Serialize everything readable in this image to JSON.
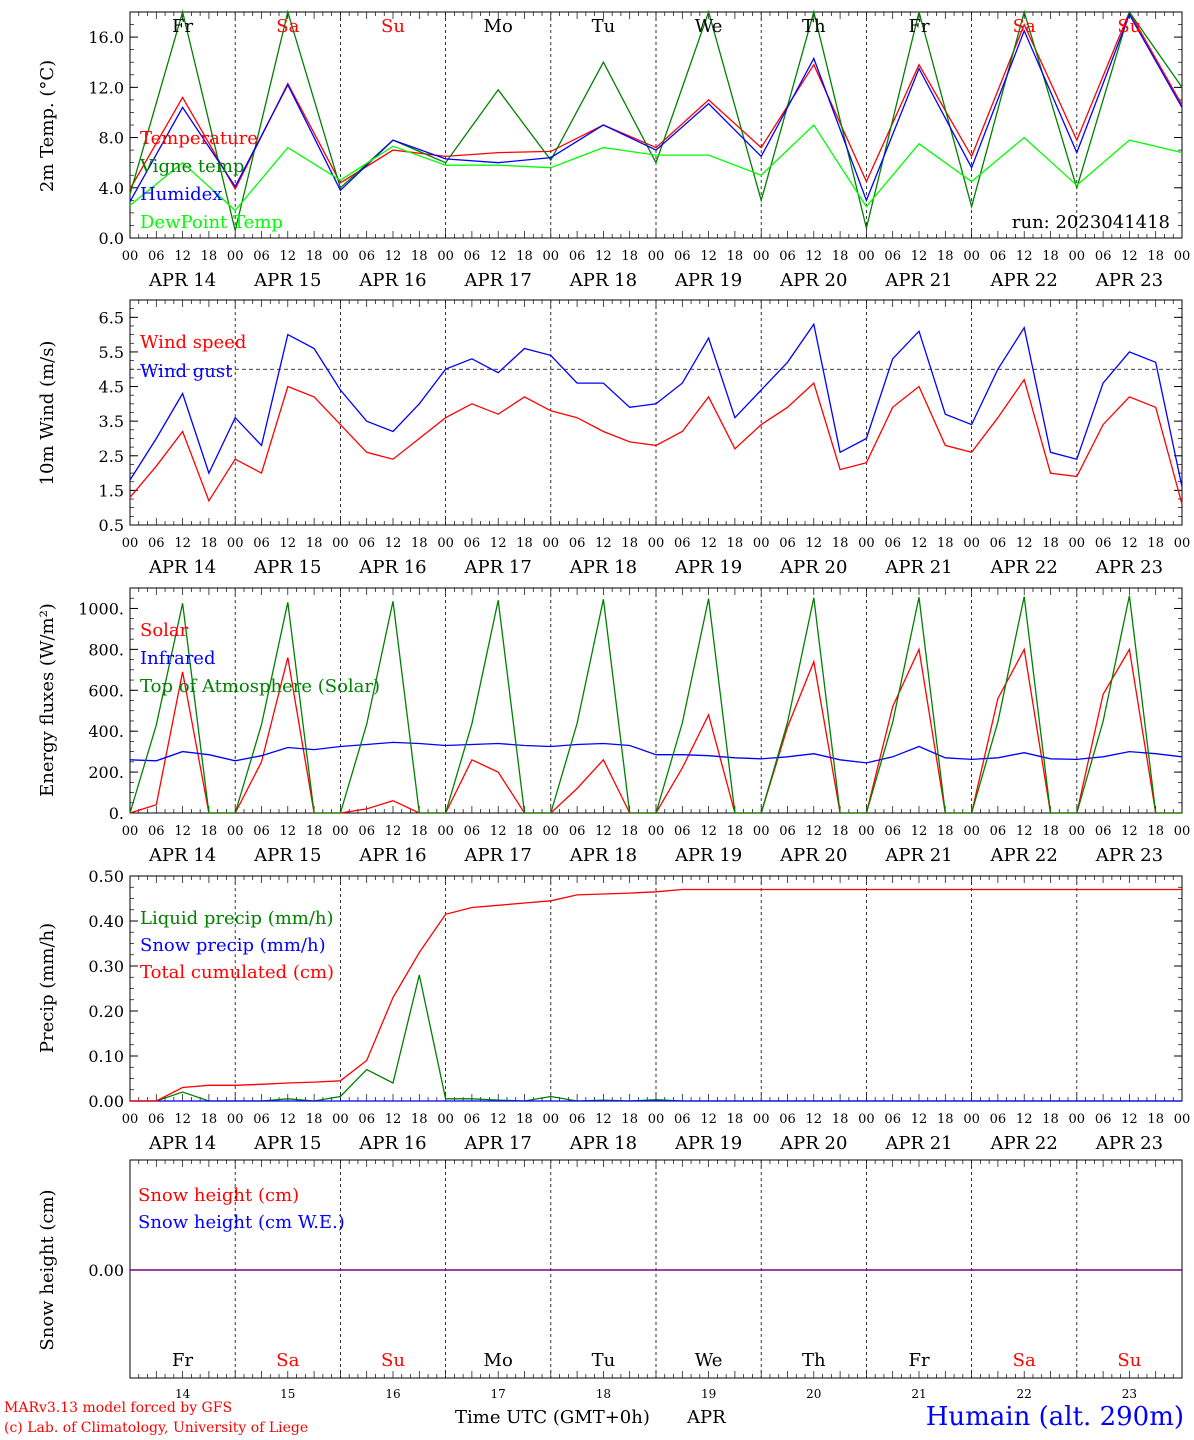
{
  "meta": {
    "run_label": "run: 2023041418",
    "station": "Humain (alt. 290m)",
    "credit1": "MARv3.13 model forced by GFS",
    "credit2": "(c) Lab. of Climatology, University of Liege",
    "xaxis_title": "Time UTC (GMT+0h)",
    "month": "APR"
  },
  "days": [
    "APR 14",
    "APR 15",
    "APR 16",
    "APR 17",
    "APR 18",
    "APR 19",
    "APR 20",
    "APR 21",
    "APR 22",
    "APR 23"
  ],
  "day_numbers": [
    "14",
    "15",
    "16",
    "17",
    "18",
    "19",
    "20",
    "21",
    "22",
    "23"
  ],
  "weekdays": [
    "Fr",
    "Sa",
    "Su",
    "Mo",
    "Tu",
    "We",
    "Th",
    "Fr",
    "Sa",
    "Su"
  ],
  "weekday_colors": [
    "#000000",
    "#ff0000",
    "#ff0000",
    "#000000",
    "#000000",
    "#000000",
    "#000000",
    "#000000",
    "#ff0000",
    "#ff0000"
  ],
  "hour_labels": [
    "00",
    "06",
    "12",
    "18"
  ],
  "colors": {
    "red": "#ff0000",
    "green": "#008000",
    "blue": "#0000ff",
    "lime": "#00ff00",
    "purple": "#800080"
  },
  "chart_data": [
    {
      "type": "line",
      "id": "temp",
      "ylabel": "2m Temp. (°C)",
      "ylim": [
        0,
        18
      ],
      "yticks": [
        "0.0",
        "4.0",
        "8.0",
        "12.0",
        "16.0"
      ],
      "x_hours": [
        0,
        12,
        24,
        36,
        48,
        60,
        72,
        84,
        96,
        108,
        120,
        132,
        144,
        156,
        168,
        180,
        192,
        204,
        216,
        228,
        240
      ],
      "series": [
        {
          "name": "Temperature",
          "color": "#ff0000",
          "values": [
            3.9,
            11.2,
            3.9,
            12.3,
            4.4,
            7.0,
            6.5,
            6.8,
            6.9,
            9.0,
            7.2,
            11.0,
            7.2,
            13.8,
            4.5,
            13.8,
            6.5,
            17.0,
            7.8,
            18.0,
            10.6
          ]
        },
        {
          "name": "Vigne temp",
          "color": "#008000",
          "values": [
            3.5,
            18.0,
            0.6,
            18.0,
            4.0,
            7.8,
            6.0,
            11.8,
            6.2,
            14.0,
            6.0,
            18.0,
            3.0,
            18.0,
            0.8,
            18.0,
            2.5,
            18.0,
            4.0,
            18.0,
            12.0
          ]
        },
        {
          "name": "Humidex",
          "color": "#0000ff",
          "values": [
            2.9,
            10.4,
            4.1,
            12.2,
            3.8,
            7.8,
            6.3,
            6.0,
            6.4,
            9.0,
            7.0,
            10.7,
            6.5,
            14.3,
            3.0,
            13.5,
            5.6,
            16.5,
            6.8,
            17.8,
            10.4
          ]
        },
        {
          "name": "DewPoint Temp",
          "color": "#00ff00",
          "values": [
            2.6,
            6.0,
            2.2,
            7.2,
            4.6,
            7.3,
            5.8,
            5.8,
            5.6,
            7.2,
            6.6,
            6.6,
            5.0,
            9.0,
            2.5,
            7.5,
            4.5,
            8.0,
            4.2,
            7.8,
            6.8
          ]
        }
      ]
    },
    {
      "type": "line",
      "id": "wind",
      "ylabel": "10m Wind (m/s)",
      "ylim": [
        0.5,
        7.0
      ],
      "yticks": [
        "0.5",
        "1.5",
        "2.5",
        "3.5",
        "4.5",
        "5.5",
        "6.5"
      ],
      "ref_line": 5.0,
      "x_hours": [
        0,
        6,
        12,
        18,
        24,
        30,
        36,
        42,
        48,
        54,
        60,
        66,
        72,
        78,
        84,
        90,
        96,
        102,
        108,
        114,
        120,
        126,
        132,
        138,
        144,
        150,
        156,
        162,
        168,
        174,
        180,
        186,
        192,
        198,
        204,
        210,
        216,
        222,
        228,
        234,
        240
      ],
      "series": [
        {
          "name": "Wind speed",
          "color": "#ff0000",
          "values": [
            1.3,
            2.2,
            3.2,
            1.2,
            2.4,
            2.0,
            4.5,
            4.2,
            3.4,
            2.6,
            2.4,
            3.0,
            3.6,
            4.0,
            3.7,
            4.2,
            3.8,
            3.6,
            3.2,
            2.9,
            2.8,
            3.2,
            4.2,
            2.7,
            3.4,
            3.9,
            4.6,
            2.1,
            2.3,
            3.9,
            4.5,
            2.8,
            2.6,
            3.6,
            4.7,
            2.0,
            1.9,
            3.4,
            4.2,
            3.9,
            1.1
          ]
        },
        {
          "name": "Wind gust",
          "color": "#0000ff",
          "values": [
            1.8,
            3.0,
            4.3,
            2.0,
            3.6,
            2.8,
            6.0,
            5.6,
            4.4,
            3.5,
            3.2,
            4.0,
            5.0,
            5.3,
            4.9,
            5.6,
            5.4,
            4.6,
            4.6,
            3.9,
            4.0,
            4.6,
            5.9,
            3.6,
            4.4,
            5.2,
            6.3,
            2.6,
            3.0,
            5.3,
            6.1,
            3.7,
            3.4,
            5.0,
            6.2,
            2.6,
            2.4,
            4.6,
            5.5,
            5.2,
            1.6
          ]
        }
      ]
    },
    {
      "type": "line",
      "id": "energy",
      "ylabel": "Energy fluxes (W/m²)",
      "ylim": [
        0,
        1100
      ],
      "yticks": [
        "0.",
        "200.",
        "400.",
        "600.",
        "800.",
        "1000."
      ],
      "x_hours": [
        0,
        6,
        12,
        18,
        24,
        30,
        36,
        42,
        48,
        54,
        60,
        66,
        72,
        78,
        84,
        90,
        96,
        102,
        108,
        114,
        120,
        126,
        132,
        138,
        144,
        150,
        156,
        162,
        168,
        174,
        180,
        186,
        192,
        198,
        204,
        210,
        216,
        222,
        228,
        234,
        240
      ],
      "series": [
        {
          "name": "Solar",
          "color": "#ff0000",
          "values": [
            0,
            40,
            690,
            0,
            0,
            250,
            760,
            0,
            0,
            20,
            60,
            0,
            0,
            260,
            200,
            0,
            0,
            120,
            260,
            0,
            0,
            220,
            480,
            0,
            0,
            420,
            740,
            0,
            0,
            520,
            800,
            0,
            0,
            560,
            800,
            0,
            0,
            580,
            800,
            0,
            0
          ]
        },
        {
          "name": "Infrared",
          "color": "#0000ff",
          "values": [
            260,
            255,
            300,
            285,
            255,
            280,
            320,
            310,
            325,
            335,
            345,
            340,
            330,
            335,
            340,
            330,
            325,
            335,
            340,
            330,
            285,
            285,
            280,
            270,
            265,
            275,
            290,
            260,
            245,
            275,
            325,
            270,
            262,
            270,
            295,
            265,
            262,
            275,
            300,
            290,
            275
          ]
        },
        {
          "name": "Top of Atmosphere (Solar)",
          "color": "#008000",
          "values": [
            0,
            430,
            1025,
            0,
            0,
            432,
            1030,
            0,
            0,
            434,
            1035,
            0,
            0,
            436,
            1040,
            0,
            0,
            438,
            1045,
            0,
            0,
            440,
            1048,
            0,
            0,
            442,
            1052,
            0,
            0,
            444,
            1055,
            0,
            0,
            446,
            1058,
            0,
            0,
            448,
            1062,
            0,
            0
          ]
        }
      ]
    },
    {
      "type": "line",
      "id": "precip",
      "ylabel": "Precip (mm/h)",
      "ylim": [
        0,
        0.5
      ],
      "yticks": [
        "0.00",
        "0.10",
        "0.20",
        "0.30",
        "0.40",
        "0.50"
      ],
      "x_hours": [
        0,
        6,
        12,
        18,
        24,
        30,
        36,
        42,
        48,
        54,
        60,
        66,
        72,
        78,
        84,
        90,
        96,
        102,
        108,
        114,
        120,
        126,
        132,
        138,
        144,
        150,
        156,
        162,
        168,
        174,
        180,
        186,
        192,
        198,
        204,
        210,
        216,
        222,
        228,
        234,
        240
      ],
      "series": [
        {
          "name": "Liquid precip (mm/h)",
          "color": "#008000",
          "values": [
            0,
            0,
            0.02,
            0,
            0,
            0,
            0.005,
            0,
            0.01,
            0.07,
            0.04,
            0.28,
            0.005,
            0.005,
            0.002,
            0,
            0.01,
            0,
            0.002,
            0,
            0.003,
            0,
            0,
            0,
            0,
            0,
            0,
            0,
            0,
            0,
            0,
            0,
            0,
            0,
            0,
            0,
            0,
            0,
            0,
            0,
            0
          ]
        },
        {
          "name": "Snow precip (mm/h)",
          "color": "#0000ff",
          "values": [
            0,
            0,
            0,
            0,
            0,
            0,
            0,
            0,
            0,
            0,
            0,
            0,
            0,
            0,
            0,
            0,
            0,
            0,
            0,
            0,
            0,
            0,
            0,
            0,
            0,
            0,
            0,
            0,
            0,
            0,
            0,
            0,
            0,
            0,
            0,
            0,
            0,
            0,
            0,
            0,
            0
          ]
        },
        {
          "name": "Total cumulated (cm)",
          "color": "#ff0000",
          "values": [
            0,
            0,
            0.03,
            0.035,
            0.035,
            0.037,
            0.04,
            0.042,
            0.045,
            0.09,
            0.23,
            0.33,
            0.415,
            0.43,
            0.435,
            0.44,
            0.445,
            0.458,
            0.46,
            0.462,
            0.465,
            0.47,
            0.47,
            0.47,
            0.47,
            0.47,
            0.47,
            0.47,
            0.47,
            0.47,
            0.47,
            0.47,
            0.47,
            0.47,
            0.47,
            0.47,
            0.47,
            0.47,
            0.47,
            0.47,
            0.47
          ]
        }
      ]
    },
    {
      "type": "line",
      "id": "snow",
      "ylabel": "Snow height (cm)",
      "yticks": [
        "0.00"
      ],
      "x_hours": [
        0,
        240
      ],
      "series": [
        {
          "name": "Snow height (cm)",
          "color": "#ff0000",
          "values": [
            0,
            0
          ]
        },
        {
          "name": "Snow height (cm W.E.)",
          "color": "#0000ff",
          "values": [
            0,
            0
          ]
        }
      ]
    }
  ]
}
